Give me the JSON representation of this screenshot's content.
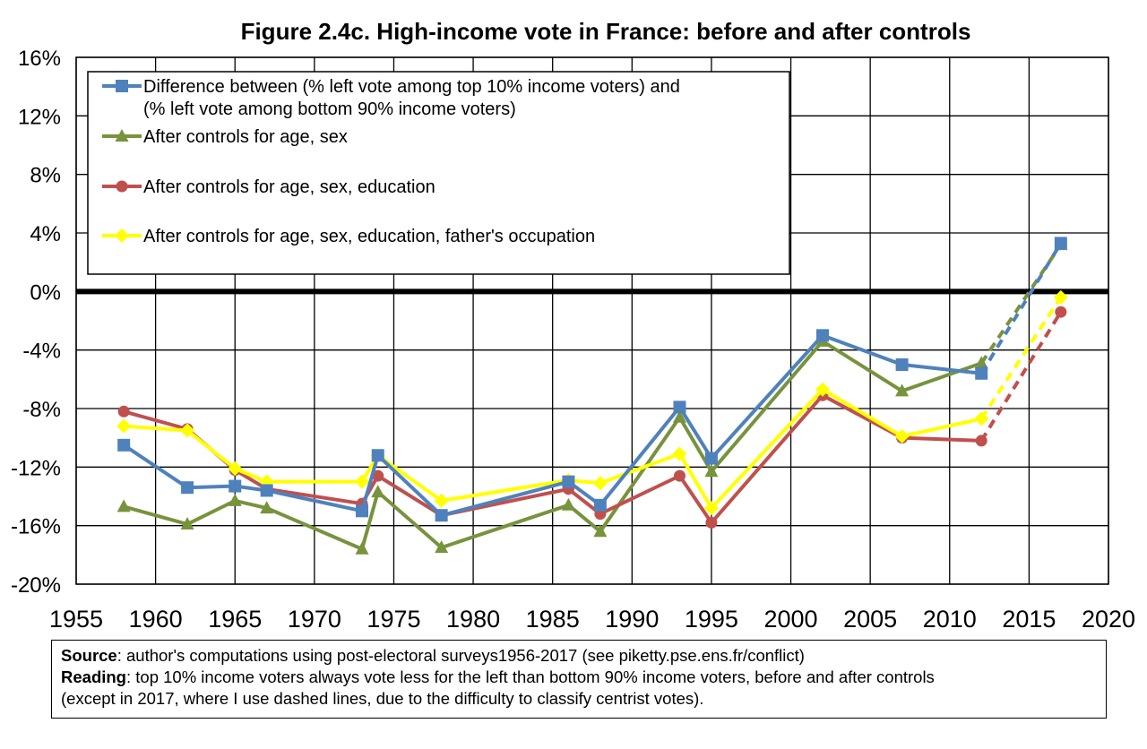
{
  "chart_data": {
    "type": "line",
    "title": "Figure 2.4c. High-income vote in France: before and after controls",
    "xlabel": "",
    "ylabel": "",
    "xlim": [
      1955,
      2020
    ],
    "ylim": [
      -20,
      16
    ],
    "x_ticks": [
      "1955",
      "1960",
      "1965",
      "1970",
      "1975",
      "1980",
      "1985",
      "1990",
      "1995",
      "2000",
      "2005",
      "2010",
      "2015",
      "2020"
    ],
    "y_ticks": [
      "16%",
      "12%",
      "8%",
      "4%",
      "0%",
      "-4%",
      "-8%",
      "-12%",
      "-16%",
      "-20%"
    ],
    "grid": true,
    "legend_position": "top-left",
    "zero_line": true,
    "dashed_segment_note": "2012 to 2017 segments are dashed",
    "series": [
      {
        "name": "Difference between (% left vote among top 10% income voters) and (% left vote among bottom 90% income voters)",
        "legend_lines": [
          "Difference between (% left vote among top 10% income voters) and",
          "(% left vote among bottom 90% income voters)"
        ],
        "color": "#4f81bd",
        "marker": "square",
        "x": [
          1958,
          1962,
          1965,
          1967,
          1973,
          1974,
          1978,
          1986,
          1988,
          1993,
          1995,
          2002,
          2007,
          2012,
          2017
        ],
        "values": [
          -10.5,
          -13.4,
          -13.3,
          -13.6,
          -15.0,
          -11.2,
          -15.3,
          -13.0,
          -14.6,
          -7.9,
          -11.4,
          -3.0,
          -5.0,
          -5.6,
          3.3
        ]
      },
      {
        "name": "After controls for age, sex",
        "legend_lines": [
          "After controls for age, sex"
        ],
        "color": "#77933c",
        "marker": "triangle",
        "x": [
          1958,
          1962,
          1965,
          1967,
          1973,
          1974,
          1978,
          1986,
          1988,
          1993,
          1995,
          2002,
          2007,
          2012,
          2017
        ],
        "values": [
          -14.7,
          -15.9,
          -14.3,
          -14.8,
          -17.6,
          -13.7,
          -17.5,
          -14.6,
          -16.4,
          -8.6,
          -12.3,
          -3.4,
          -6.8,
          -4.9,
          3.2
        ]
      },
      {
        "name": "After controls for age, sex, education",
        "legend_lines": [
          "After controls for age, sex, education"
        ],
        "color": "#c0504d",
        "marker": "circle",
        "x": [
          1958,
          1962,
          1965,
          1967,
          1973,
          1974,
          1978,
          1986,
          1988,
          1993,
          1995,
          2002,
          2007,
          2012,
          2017
        ],
        "values": [
          -8.2,
          -9.4,
          -12.2,
          -13.5,
          -14.5,
          -12.6,
          -15.3,
          -13.5,
          -15.2,
          -12.6,
          -15.8,
          -7.1,
          -10.0,
          -10.2,
          -1.4
        ]
      },
      {
        "name": "After controls for age, sex, education, father's occupation",
        "legend_lines": [
          "After controls for age, sex, education, father's occupation"
        ],
        "color": "#ffff00",
        "marker": "diamond",
        "x": [
          1958,
          1962,
          1965,
          1967,
          1973,
          1974,
          1978,
          1986,
          1988,
          1993,
          1995,
          2002,
          2007,
          2012,
          2017
        ],
        "values": [
          -9.2,
          -9.5,
          -12.1,
          -13.0,
          -13.0,
          -11.2,
          -14.3,
          -12.9,
          -13.1,
          -11.1,
          -14.8,
          -6.7,
          -9.9,
          -8.7,
          -0.4
        ]
      }
    ]
  },
  "notes": {
    "source_label": "Source",
    "source_text": ": author's computations using post-electoral surveys1956-2017 (see piketty.pse.ens.fr/conflict)",
    "reading_label": "Reading",
    "reading_text": ": top 10% income voters always vote less for the left than bottom 90% income voters, before and after controls",
    "reading_text_2": "(except in 2017, where I use dashed lines, due to the difficulty to classify centrist votes)."
  }
}
